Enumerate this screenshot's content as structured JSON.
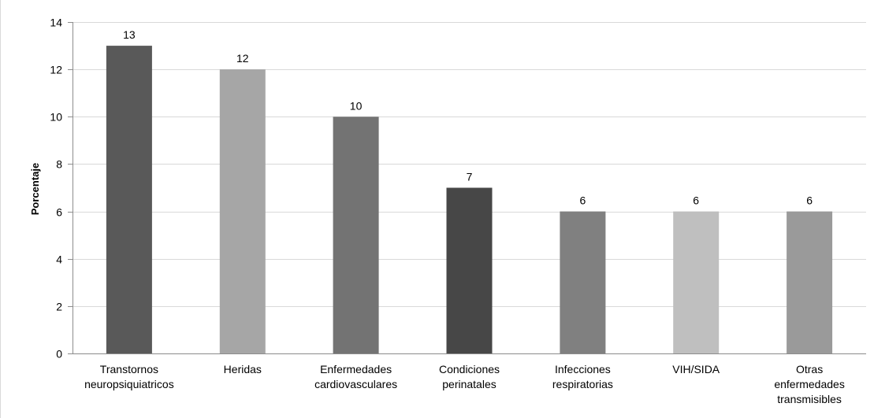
{
  "chart_data": {
    "type": "bar",
    "title": "",
    "xlabel": "",
    "ylabel": "Porcentaje",
    "ylim": [
      0,
      14
    ],
    "y_ticks": [
      0,
      2,
      4,
      6,
      8,
      10,
      12,
      14
    ],
    "grid": "horizontal",
    "legend": "none",
    "categories": [
      [
        "Transtornos",
        "neuropsiquiatricos"
      ],
      [
        "Heridas"
      ],
      [
        "Enfermedades",
        "cardiovasculares"
      ],
      [
        "Condiciones",
        "perinatales"
      ],
      [
        "Infecciones",
        "respiratorias"
      ],
      [
        "VIH/SIDA"
      ],
      [
        "Otras",
        "enfermedades",
        "transmisibles"
      ]
    ],
    "values": [
      13,
      12,
      10,
      7,
      6,
      6,
      6
    ],
    "bar_colors": [
      "#595959",
      "#a6a6a6",
      "#737373",
      "#474747",
      "#808080",
      "#bfbfbf",
      "#9a9a9a"
    ],
    "gridline_color": "#d9d9d9",
    "axis_color": "#8c8c8c"
  }
}
